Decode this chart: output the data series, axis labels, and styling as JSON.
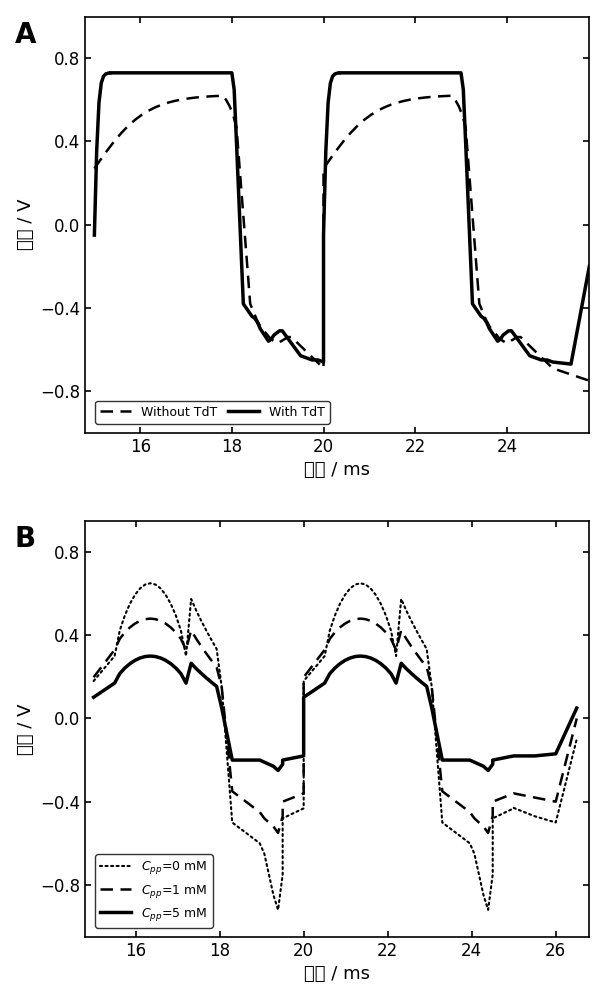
{
  "panel_A": {
    "label": "A",
    "xlabel": "时间 / ms",
    "ylabel": "电压 / V",
    "xlim": [
      14.8,
      25.8
    ],
    "ylim": [
      -1.0,
      1.0
    ],
    "xticks": [
      16,
      18,
      20,
      22,
      24
    ],
    "yticks": [
      -0.8,
      -0.4,
      0.0,
      0.4,
      0.8
    ]
  },
  "panel_B": {
    "label": "B",
    "xlabel": "时间 / ms",
    "ylabel": "电压 / V",
    "xlim": [
      14.8,
      26.8
    ],
    "ylim": [
      -1.05,
      0.95
    ],
    "xticks": [
      16,
      18,
      20,
      22,
      24,
      26
    ],
    "yticks": [
      -0.8,
      -0.4,
      0.0,
      0.4,
      0.8
    ]
  },
  "figure_bg": "#ffffff",
  "axes_bg": "#ffffff",
  "tick_fontsize": 12,
  "label_fontsize": 13,
  "panel_label_fontsize": 20
}
